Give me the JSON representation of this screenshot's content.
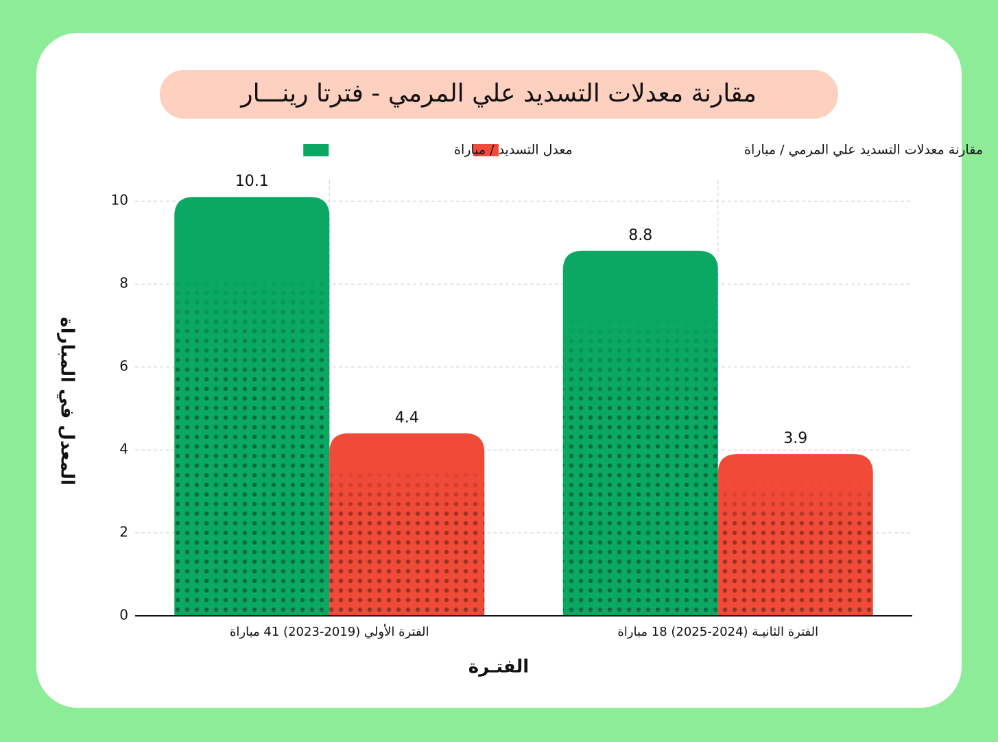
{
  "chart_data": {
    "type": "bar",
    "title": "مقارنة معدلات التسديد علي المرمي - فترتا رينـــار",
    "xlabel": "الفتـرة",
    "ylabel": "المعدل في المباراة",
    "categories": [
      "الفترة الأولي (2019-2023) 41 مباراة",
      "الفترة الثانيـة (2024-2025) 18 مباراة"
    ],
    "series": [
      {
        "name": "معدل التسديد / مباراة",
        "color": "#0aa862",
        "values": [
          10.1,
          8.8
        ]
      },
      {
        "name": "مقارنة معدلات التسديد علي المرمي / مباراة",
        "color": "#f04a38",
        "values": [
          4.4,
          3.9
        ]
      }
    ],
    "ylim": [
      0,
      10.5
    ],
    "yticks": [
      0,
      2,
      4,
      6,
      8,
      10
    ],
    "grid": true
  }
}
